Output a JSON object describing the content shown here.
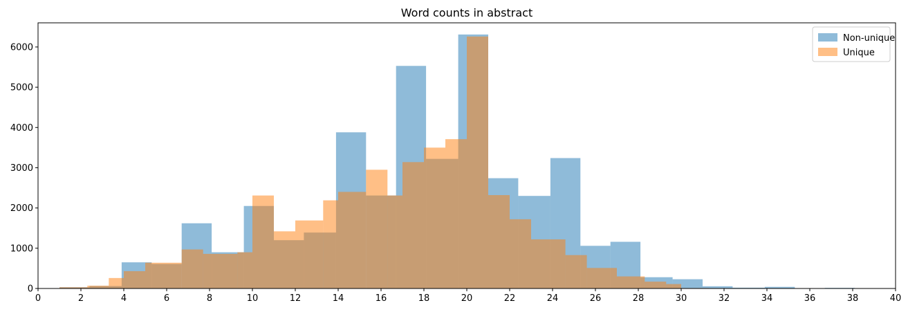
{
  "chart_data": {
    "type": "bar",
    "title": "Word counts in abstract",
    "xlabel": "",
    "ylabel": "",
    "xlim": [
      0,
      40
    ],
    "ylim": [
      0,
      6600
    ],
    "x_ticks": [
      0,
      2,
      4,
      6,
      8,
      10,
      12,
      14,
      16,
      18,
      20,
      22,
      24,
      26,
      28,
      30,
      32,
      34,
      36,
      38,
      40
    ],
    "y_ticks": [
      0,
      1000,
      2000,
      3000,
      4000,
      5000,
      6000
    ],
    "grid": false,
    "legend_position": "top-right",
    "series": [
      {
        "name": "Non-unique",
        "color": "#1f77b4",
        "opacity": 0.5,
        "bins": [
          [
            1.0,
            2.4,
            30
          ],
          [
            2.4,
            3.9,
            60
          ],
          [
            3.9,
            5.3,
            650
          ],
          [
            5.3,
            6.7,
            610
          ],
          [
            6.7,
            8.1,
            1620
          ],
          [
            8.1,
            9.6,
            900
          ],
          [
            9.6,
            11.0,
            2050
          ],
          [
            11.0,
            12.4,
            1200
          ],
          [
            12.4,
            13.9,
            1390
          ],
          [
            13.9,
            15.3,
            3880
          ],
          [
            15.3,
            16.7,
            2310
          ],
          [
            16.7,
            18.1,
            5530
          ],
          [
            18.1,
            19.6,
            3220
          ],
          [
            19.6,
            21.0,
            6310
          ],
          [
            21.0,
            22.4,
            2740
          ],
          [
            22.4,
            23.9,
            2300
          ],
          [
            23.9,
            25.3,
            3240
          ],
          [
            25.3,
            26.7,
            1060
          ],
          [
            26.7,
            28.1,
            1160
          ],
          [
            28.1,
            29.6,
            280
          ],
          [
            29.6,
            31.0,
            230
          ],
          [
            31.0,
            32.4,
            55
          ],
          [
            32.4,
            33.9,
            20
          ],
          [
            33.9,
            35.3,
            40
          ],
          [
            35.3,
            36.7,
            5
          ],
          [
            36.7,
            38.1,
            15
          ]
        ]
      },
      {
        "name": "Unique",
        "color": "#ff7f0e",
        "opacity": 0.5,
        "bins": [
          [
            1.0,
            2.3,
            30
          ],
          [
            2.3,
            3.3,
            70
          ],
          [
            3.3,
            4.0,
            260
          ],
          [
            4.0,
            5.0,
            430
          ],
          [
            5.0,
            6.7,
            640
          ],
          [
            6.7,
            7.7,
            970
          ],
          [
            7.7,
            9.3,
            860
          ],
          [
            9.3,
            10.0,
            900
          ],
          [
            10.0,
            11.0,
            2310
          ],
          [
            11.0,
            12.0,
            1420
          ],
          [
            12.0,
            13.3,
            1690
          ],
          [
            13.3,
            14.0,
            2190
          ],
          [
            14.0,
            15.3,
            2400
          ],
          [
            15.3,
            16.3,
            2950
          ],
          [
            16.3,
            17.0,
            2310
          ],
          [
            17.0,
            18.0,
            3140
          ],
          [
            18.0,
            19.0,
            3500
          ],
          [
            19.0,
            20.0,
            3710
          ],
          [
            20.0,
            21.0,
            6260
          ],
          [
            21.0,
            22.0,
            2320
          ],
          [
            22.0,
            23.0,
            1720
          ],
          [
            23.0,
            24.6,
            1220
          ],
          [
            24.6,
            25.6,
            830
          ],
          [
            25.6,
            27.0,
            510
          ],
          [
            27.0,
            28.3,
            300
          ],
          [
            28.3,
            29.3,
            170
          ],
          [
            29.3,
            30.0,
            110
          ],
          [
            30.0,
            31.3,
            10
          ],
          [
            31.3,
            33.0,
            5
          ]
        ]
      }
    ]
  }
}
